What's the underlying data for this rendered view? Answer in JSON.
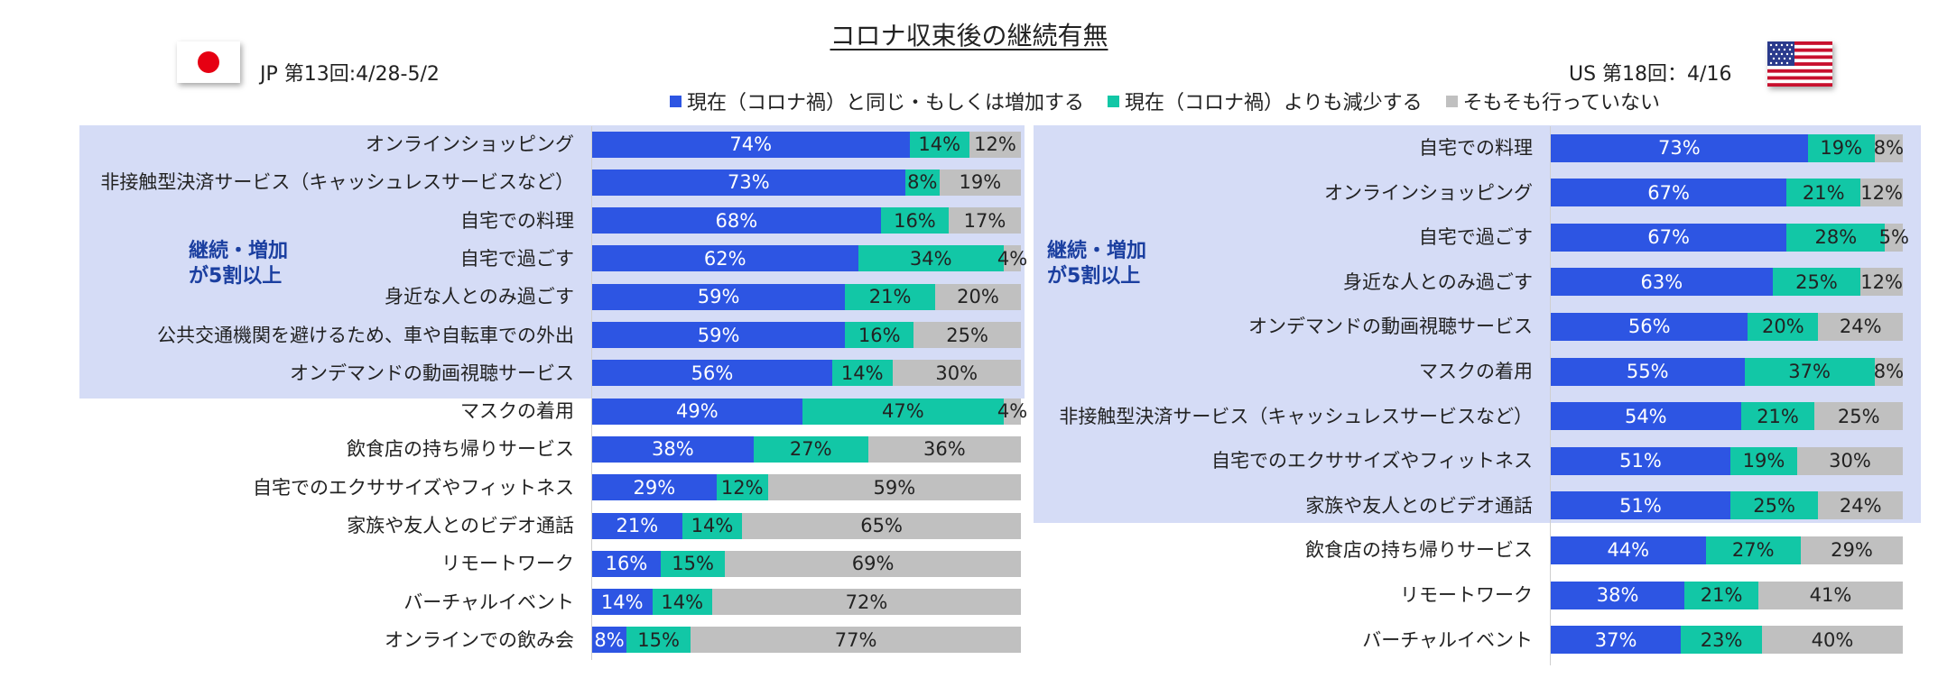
{
  "title": "コロナ収束後の継続有無",
  "legend": [
    {
      "label": "現在（コロナ禍）と同じ・もしくは増加する",
      "color": "#2d55e3"
    },
    {
      "label": "現在（コロナ禍）よりも減少する",
      "color": "#12c7a6"
    },
    {
      "label": "そもそも行っていない",
      "color": "#c0c0c0"
    }
  ],
  "jp": {
    "flag_icon": "japan-flag-icon",
    "label": "JP 第13回:4/28-5/2",
    "group_label_line1": "継続・増加",
    "group_label_line2": "が5割以上"
  },
  "us": {
    "flag_icon": "usa-flag-icon",
    "label": "US 第18回：4/16",
    "group_label_line1": "継続・増加",
    "group_label_line2": "が5割以上"
  },
  "chart_data": [
    {
      "type": "bar",
      "orientation": "horizontal",
      "stacked": true,
      "name": "JP 第13回:4/28-5/2",
      "categories": [
        "オンラインショッピング",
        "非接触型決済サービス（キャッシュレスサービスなど）",
        "自宅での料理",
        "自宅で過ごす",
        "身近な人とのみ過ごす",
        "公共交通機関を避けるため、車や自転車での外出",
        "オンデマンドの動画視聴サービス",
        "マスクの着用",
        "飲食店の持ち帰りサービス",
        "自宅でのエクササイズやフィットネス",
        "家族や友人とのビデオ通話",
        "リモートワーク",
        "バーチャルイベント",
        "オンラインでの飲み会"
      ],
      "series": [
        {
          "name": "現在（コロナ禍）と同じ・もしくは増加する",
          "values": [
            74,
            73,
            68,
            62,
            59,
            59,
            56,
            49,
            38,
            29,
            21,
            16,
            14,
            8
          ]
        },
        {
          "name": "現在（コロナ禍）よりも減少する",
          "values": [
            14,
            8,
            16,
            34,
            21,
            16,
            14,
            47,
            27,
            12,
            14,
            15,
            14,
            15
          ]
        },
        {
          "name": "そもそも行っていない",
          "values": [
            12,
            19,
            17,
            4,
            20,
            25,
            30,
            4,
            36,
            59,
            65,
            69,
            72,
            77
          ]
        }
      ],
      "value_suffix": "%",
      "highlighted_rows": 7,
      "xlim": [
        0,
        100
      ]
    },
    {
      "type": "bar",
      "orientation": "horizontal",
      "stacked": true,
      "name": "US 第18回：4/16",
      "categories": [
        "自宅での料理",
        "オンラインショッピング",
        "自宅で過ごす",
        "身近な人とのみ過ごす",
        "オンデマンドの動画視聴サービス",
        "マスクの着用",
        "非接触型決済サービス（キャッシュレスサービスなど）",
        "自宅でのエクササイズやフィットネス",
        "家族や友人とのビデオ通話",
        "飲食店の持ち帰りサービス",
        "リモートワーク",
        "バーチャルイベント"
      ],
      "series": [
        {
          "name": "現在（コロナ禍）と同じ・もしくは増加する",
          "values": [
            73,
            67,
            67,
            63,
            56,
            55,
            54,
            51,
            51,
            44,
            38,
            37
          ]
        },
        {
          "name": "現在（コロナ禍）よりも減少する",
          "values": [
            19,
            21,
            28,
            25,
            20,
            37,
            21,
            19,
            25,
            27,
            21,
            23
          ]
        },
        {
          "name": "そもそも行っていない",
          "values": [
            8,
            12,
            5,
            12,
            24,
            8,
            25,
            30,
            24,
            29,
            41,
            40
          ]
        }
      ],
      "value_suffix": "%",
      "highlighted_rows": 9,
      "xlim": [
        0,
        100
      ]
    }
  ]
}
